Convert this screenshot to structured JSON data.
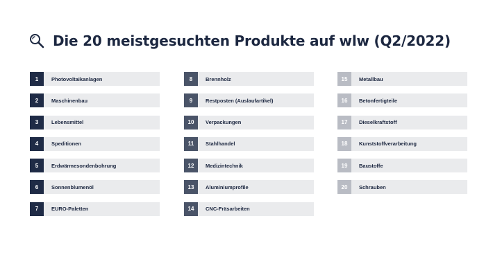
{
  "title": "Die 20 meistgesuchten Produkte auf wlw (Q2/2022)",
  "colors": {
    "rank_1_7": "#1f2b46",
    "rank_8_14": "#4a5468",
    "rank_15_20": "#b9bcc4",
    "row_background": "#eaebed",
    "text": "#1c2740"
  },
  "icon": "search-icon",
  "columns": [
    {
      "items": [
        {
          "rank": "1",
          "label": "Photovoltaikanlagen"
        },
        {
          "rank": "2",
          "label": "Maschinenbau"
        },
        {
          "rank": "3",
          "label": "Lebensmittel"
        },
        {
          "rank": "4",
          "label": "Speditionen"
        },
        {
          "rank": "5",
          "label": "Erdwärmesondenbohrung"
        },
        {
          "rank": "6",
          "label": "Sonnenblumenöl"
        },
        {
          "rank": "7",
          "label": "EURO-Paletten"
        }
      ]
    },
    {
      "items": [
        {
          "rank": "8",
          "label": "Brennholz"
        },
        {
          "rank": "9",
          "label": "Restposten (Auslaufartikel)"
        },
        {
          "rank": "10",
          "label": "Verpackungen"
        },
        {
          "rank": "11",
          "label": "Stahlhandel"
        },
        {
          "rank": "12",
          "label": "Medizintechnik"
        },
        {
          "rank": "13",
          "label": "Aluminiumprofile"
        },
        {
          "rank": "14",
          "label": "CNC-Fräsarbeiten"
        }
      ]
    },
    {
      "items": [
        {
          "rank": "15",
          "label": "Metallbau"
        },
        {
          "rank": "16",
          "label": "Betonfertigteile"
        },
        {
          "rank": "17",
          "label": "Dieselkraftstoff"
        },
        {
          "rank": "18",
          "label": "Kunststoffverarbeitung"
        },
        {
          "rank": "19",
          "label": "Baustoffe"
        },
        {
          "rank": "20",
          "label": "Schrauben"
        }
      ]
    }
  ]
}
